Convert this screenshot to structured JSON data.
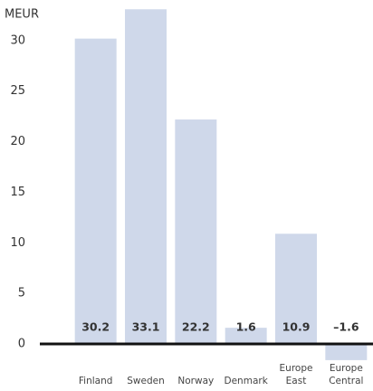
{
  "chart_data": {
    "type": "bar",
    "y_label": "MEUR",
    "categories": [
      "Finland",
      "Sweden",
      "Norway",
      "Denmark",
      "Europe East",
      "Europe Central"
    ],
    "values": [
      30.2,
      33.1,
      22.2,
      1.6,
      10.9,
      -1.6
    ],
    "value_labels": [
      "30.2",
      "33.1",
      "22.2",
      "1.6",
      "10.9",
      "–1.6"
    ],
    "color": "#cfd8ea",
    "ylim": [
      -4,
      34
    ],
    "yticks": [
      0,
      5,
      10,
      15,
      20,
      25,
      30
    ],
    "grid": false
  }
}
